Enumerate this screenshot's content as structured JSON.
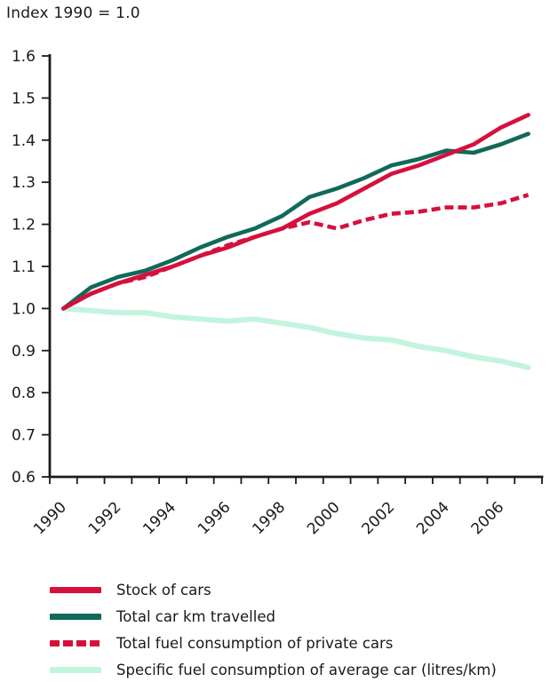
{
  "title": "Index 1990 = 1.0",
  "chart_data": {
    "type": "line",
    "x": [
      1990,
      1991,
      1992,
      1993,
      1994,
      1995,
      1996,
      1997,
      1998,
      1999,
      2000,
      2001,
      2002,
      2003,
      2004,
      2005,
      2006,
      2007
    ],
    "x_tick_labels": [
      "1990",
      "1992",
      "1994",
      "1996",
      "1998",
      "2000",
      "2002",
      "2004",
      "2006"
    ],
    "ylim": [
      0.6,
      1.6
    ],
    "y_ticks": [
      0.6,
      0.7,
      0.8,
      0.9,
      1.0,
      1.1,
      1.2,
      1.3,
      1.4,
      1.5,
      1.6
    ],
    "grid": false,
    "legend_position": "bottom-left",
    "axis_color": "#1a1a1a",
    "series": [
      {
        "name": "Stock of cars",
        "color": "#d6103c",
        "style": "solid",
        "values": [
          1.0,
          1.035,
          1.06,
          1.08,
          1.1,
          1.125,
          1.145,
          1.17,
          1.19,
          1.225,
          1.25,
          1.285,
          1.32,
          1.34,
          1.365,
          1.39,
          1.43,
          1.46
        ]
      },
      {
        "name": "Total car km travelled",
        "color": "#11695a",
        "style": "solid",
        "values": [
          1.0,
          1.05,
          1.075,
          1.09,
          1.115,
          1.145,
          1.17,
          1.19,
          1.22,
          1.265,
          1.285,
          1.31,
          1.34,
          1.355,
          1.375,
          1.37,
          1.39,
          1.415
        ]
      },
      {
        "name": "Total fuel consumption of private cars",
        "color": "#d6103c",
        "style": "dashed",
        "values": [
          1.0,
          1.035,
          1.06,
          1.075,
          1.1,
          1.125,
          1.15,
          1.17,
          1.19,
          1.205,
          1.19,
          1.21,
          1.225,
          1.23,
          1.24,
          1.24,
          1.25,
          1.27
        ]
      },
      {
        "name": "Specific fuel consumption of average car (litres/km)",
        "color": "#c2f4de",
        "style": "solid",
        "values": [
          1.0,
          0.995,
          0.99,
          0.99,
          0.98,
          0.975,
          0.97,
          0.975,
          0.965,
          0.955,
          0.94,
          0.93,
          0.925,
          0.91,
          0.9,
          0.885,
          0.875,
          0.86
        ]
      }
    ]
  }
}
